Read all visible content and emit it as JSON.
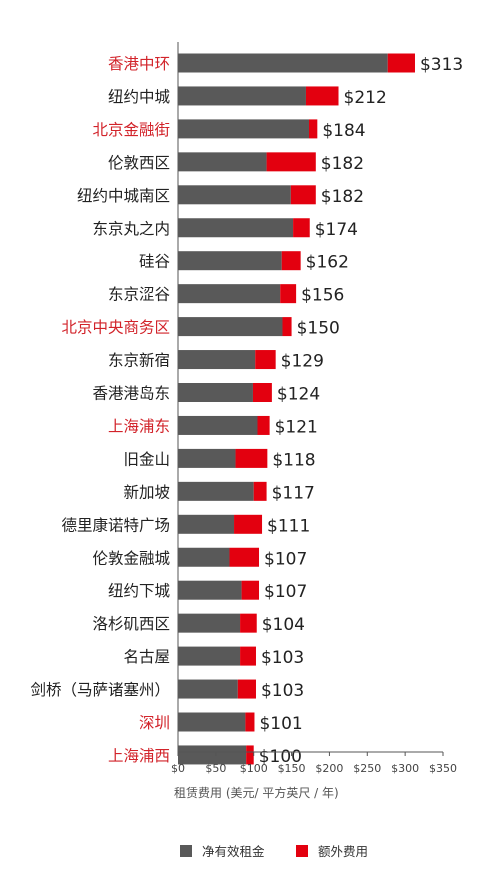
{
  "chart_data": {
    "type": "bar",
    "orientation": "horizontal",
    "stacked": true,
    "categories": [
      "香港中环",
      "纽约中城",
      "北京金融街",
      "伦敦西区",
      "纽约中城南区",
      "东京丸之内",
      "硅谷",
      "东京涩谷",
      "北京中央商务区",
      "东京新宿",
      "香港港岛东",
      "上海浦东",
      "旧金山",
      "新加坡",
      "德里康诺特广场",
      "伦敦金融城",
      "纽约下城",
      "洛杉矶西区",
      "名古屋",
      "剑桥（马萨诸塞州）",
      "深圳",
      "上海浦西"
    ],
    "highlighted": [
      "香港中环",
      "北京金融街",
      "北京中央商务区",
      "上海浦东",
      "深圳",
      "上海浦西"
    ],
    "series": [
      {
        "name": "净有效租金",
        "color": "#595959",
        "values": [
          277,
          169,
          173,
          117,
          149,
          152,
          137,
          135,
          138,
          102,
          99,
          105,
          76,
          100,
          74,
          68,
          84,
          82,
          82,
          79,
          89,
          90
        ]
      },
      {
        "name": "额外费用",
        "color": "#e3000f",
        "values": [
          36,
          43,
          11,
          65,
          33,
          22,
          25,
          21,
          12,
          27,
          25,
          16,
          42,
          17,
          37,
          39,
          23,
          22,
          21,
          24,
          12,
          10
        ]
      }
    ],
    "totals": [
      "$313",
      "$212",
      "$184",
      "$182",
      "$182",
      "$174",
      "$162",
      "$156",
      "$150",
      "$129",
      "$124",
      "$121",
      "$118",
      "$117",
      "$111",
      "$107",
      "$107",
      "$104",
      "$103",
      "$103",
      "$101",
      "$100"
    ],
    "xlabel": "租赁费用 (美元/ 平方英尺 / 年)",
    "xlim": [
      0,
      350
    ],
    "xticks": [
      0,
      50,
      100,
      150,
      200,
      250,
      300,
      350
    ],
    "xtick_labels": [
      "$0",
      "$50",
      "$100",
      "$150",
      "$200",
      "$250",
      "$300",
      "$350"
    ],
    "grid": false,
    "legend_position": "bottom",
    "label_color": "#222222",
    "highlight_color": "#d2232a"
  }
}
